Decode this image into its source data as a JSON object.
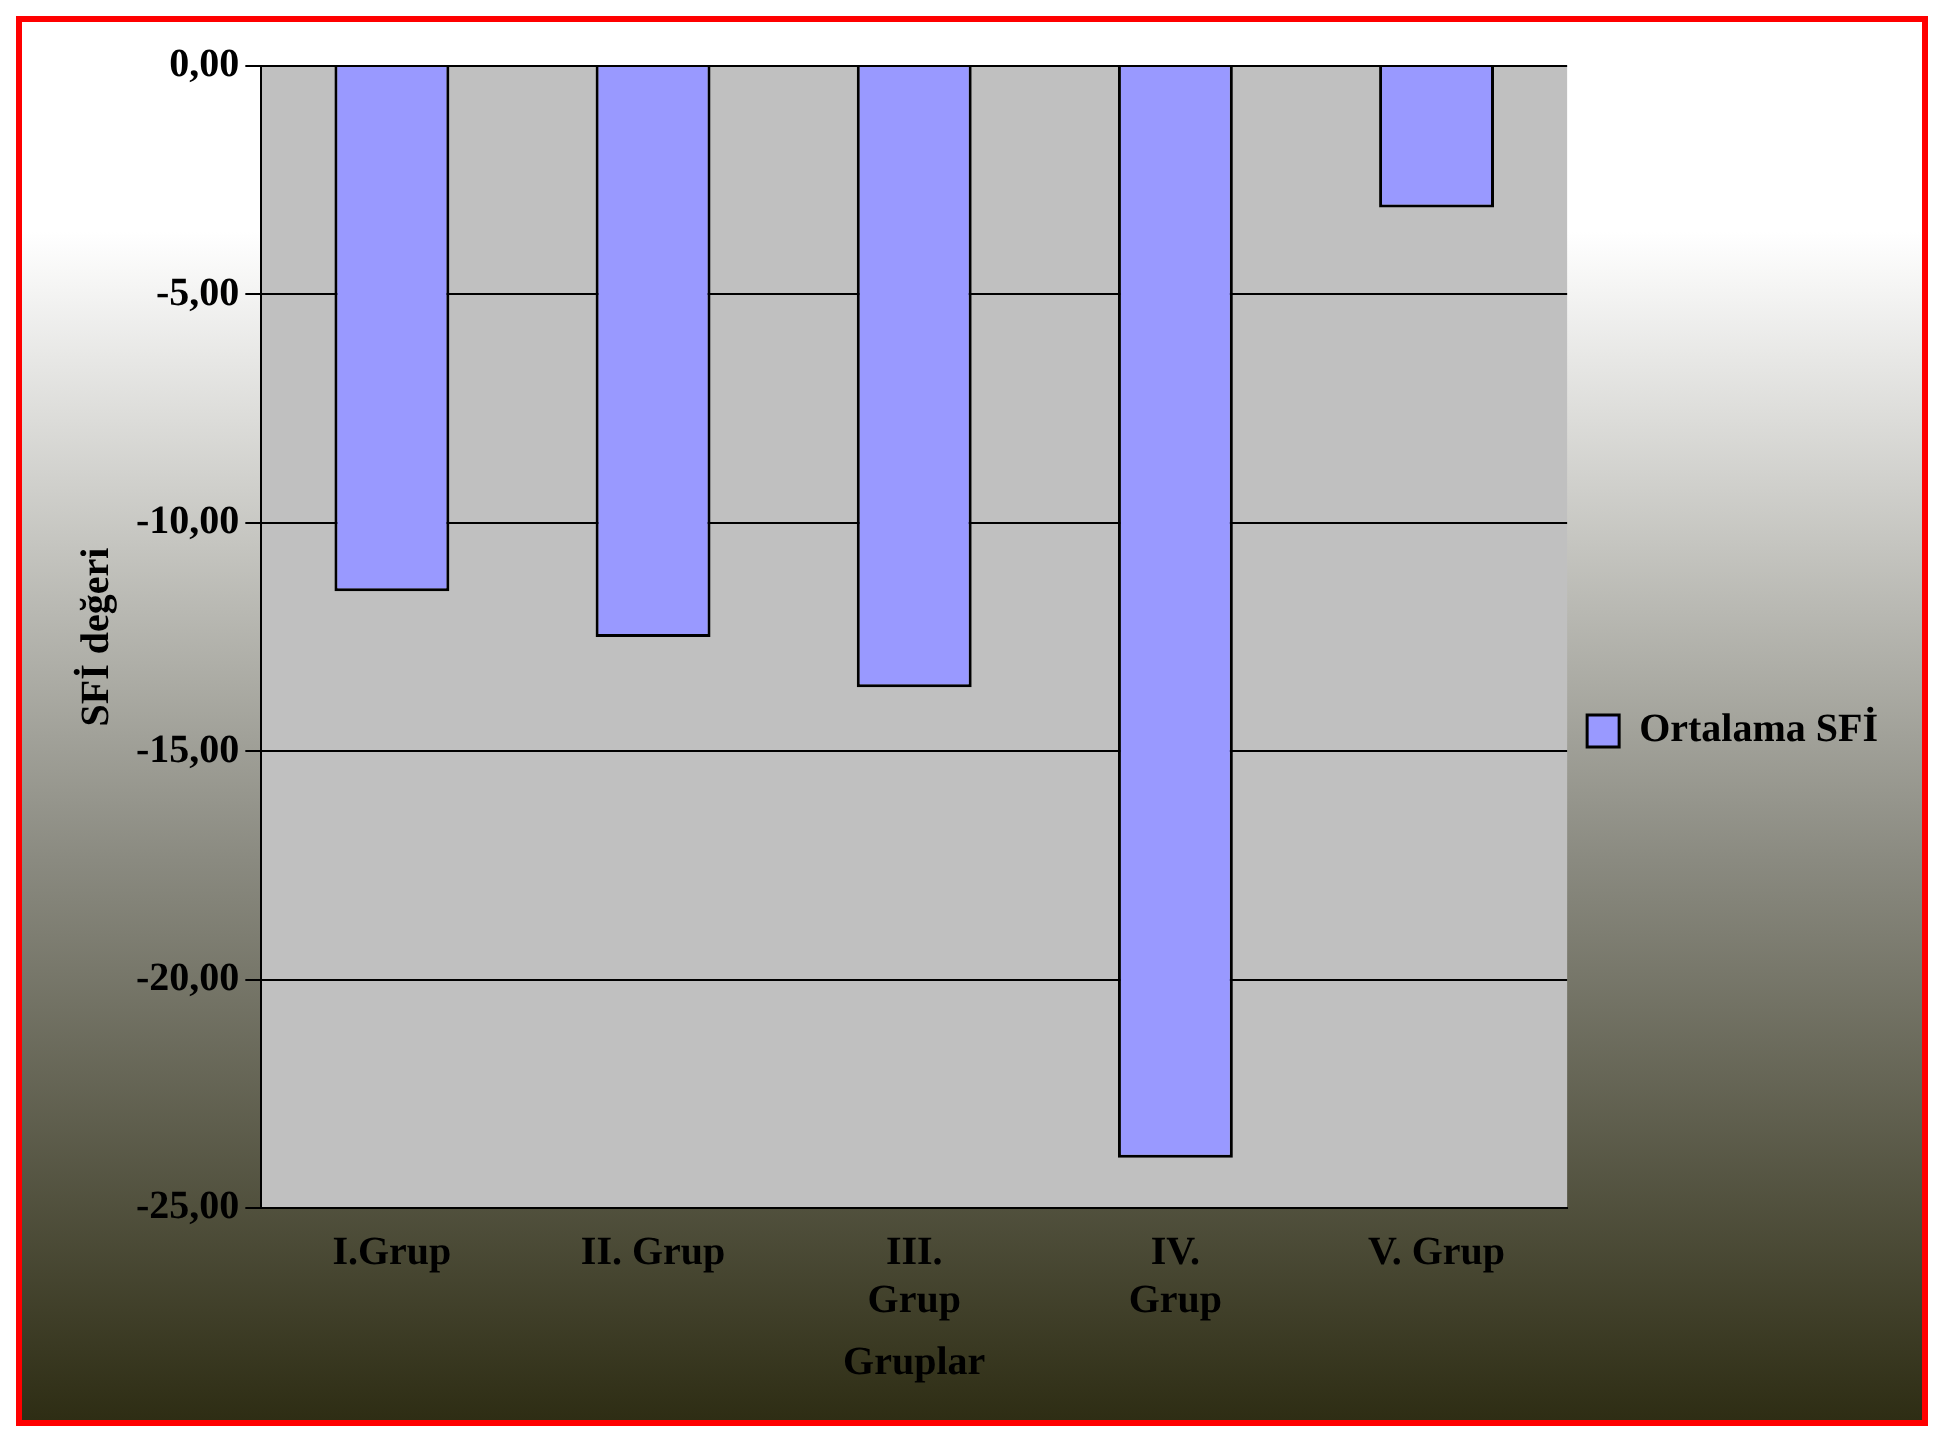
{
  "chart_data": {
    "type": "bar",
    "xlabel": "Gruplar",
    "ylabel": "SFİ değeri",
    "categories": [
      "I.Grup",
      "II. Grup",
      "III. Grup",
      "IV. Grup",
      "V. Grup"
    ],
    "series": [
      {
        "name": "Ortalama SFİ",
        "color": "#9999ff",
        "values": [
          -11.5,
          -12.5,
          -13.6,
          -23.9,
          -3.1
        ]
      }
    ],
    "ylim": [
      -25,
      0
    ],
    "yticks": [
      {
        "value": 0,
        "label": "0,00"
      },
      {
        "value": -5,
        "label": "-5,00"
      },
      {
        "value": -10,
        "label": "-10,00"
      },
      {
        "value": -15,
        "label": "-15,00"
      },
      {
        "value": -20,
        "label": "-20,00"
      },
      {
        "value": -25,
        "label": "-25,00"
      }
    ],
    "grid": "y",
    "legend": "right"
  }
}
